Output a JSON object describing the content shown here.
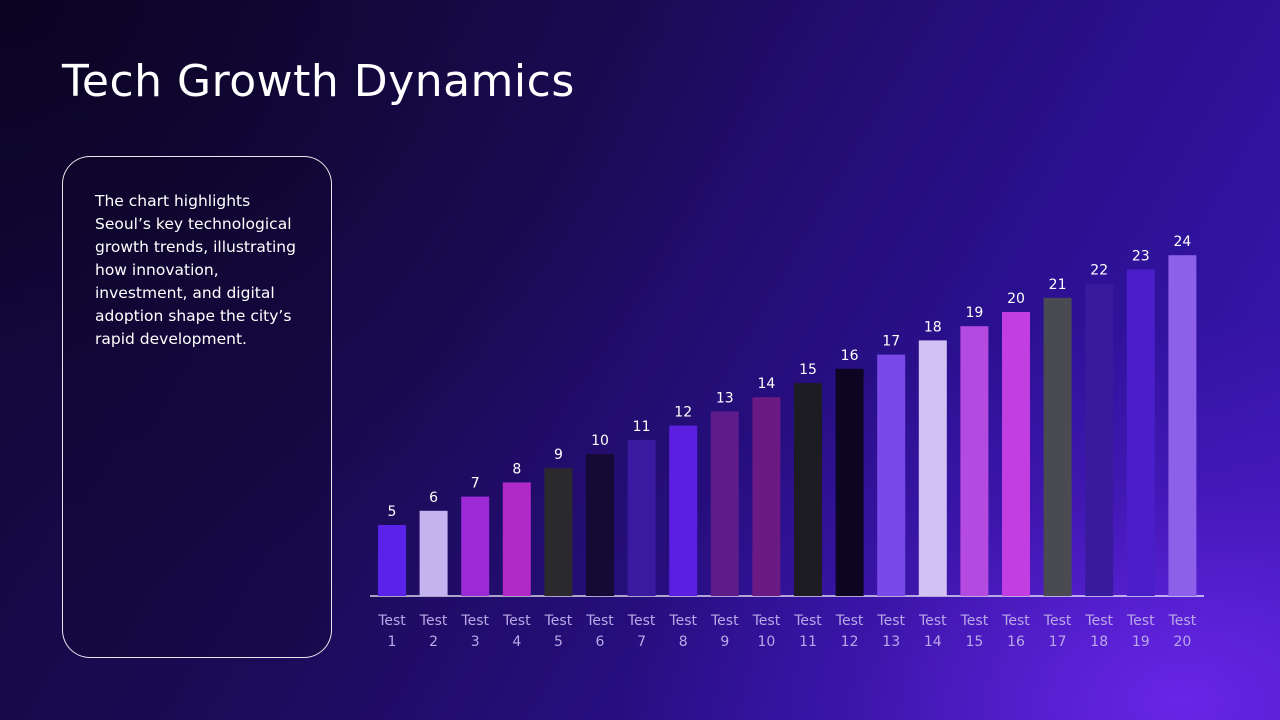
{
  "slide": {
    "title": "Tech Growth Dynamics",
    "description": "The chart highlights Seoul’s key technological growth trends, illustrating how innovation, investment, and digital adoption shape the city’s rapid development."
  },
  "chart_data": {
    "type": "bar",
    "title": "",
    "xlabel": "",
    "ylabel": "",
    "categories": [
      "Test 1",
      "Test 2",
      "Test 3",
      "Test 4",
      "Test 5",
      "Test 6",
      "Test 7",
      "Test 8",
      "Test 9",
      "Test 10",
      "Test 11",
      "Test 12",
      "Test 13",
      "Test 14",
      "Test 15",
      "Test 16",
      "Test 17",
      "Test 18",
      "Test 19",
      "Test 20"
    ],
    "values": [
      5,
      6,
      7,
      8,
      9,
      10,
      11,
      12,
      13,
      14,
      15,
      16,
      17,
      18,
      19,
      20,
      21,
      22,
      23,
      24
    ],
    "bar_colors": [
      "#5b22ea",
      "#c5b3f0",
      "#9b2ad6",
      "#b12ac8",
      "#2a2a2e",
      "#150a35",
      "#3a1aa0",
      "#5a1fe0",
      "#5e1c8a",
      "#6a1a82",
      "#1c1c22",
      "#0c0622",
      "#7a4ae8",
      "#d2c2f4",
      "#b44ae0",
      "#c23ee0",
      "#4a4a52",
      "#3a1a9c",
      "#4a1ec8",
      "#8c60e8"
    ],
    "ylim": [
      0,
      24
    ],
    "data_labels": true,
    "grid": false,
    "legend": "none"
  }
}
